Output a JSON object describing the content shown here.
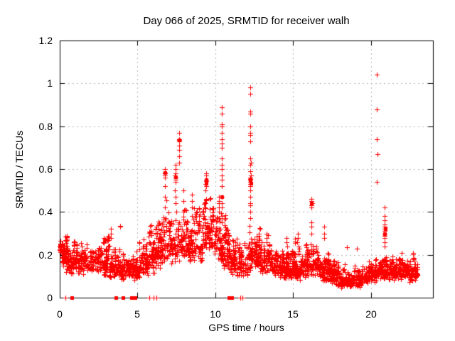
{
  "chart_data": {
    "type": "scatter",
    "title": "Day 066 of 2025, SRMTID for receiver walh",
    "xlabel": "GPS time / hours",
    "ylabel": "SRMTID / TECUs",
    "xlim": [
      0,
      24
    ],
    "ylim": [
      0,
      1.2
    ],
    "xtick_labels": [
      "0",
      "5",
      "10",
      "15",
      "20"
    ],
    "xtick_values": [
      0,
      5,
      10,
      15,
      20
    ],
    "ytick_labels": [
      "0",
      "0.2",
      "0.4",
      "0.6",
      "0.8",
      "1",
      "1.2"
    ],
    "ytick_values": [
      0,
      0.2,
      0.4,
      0.6,
      0.8,
      1.0,
      1.2
    ],
    "grid": true,
    "legend": "none",
    "marker": "plus",
    "marker_color": "#ff0000",
    "grid_color": "#b4b4b4",
    "border_color": "#000000",
    "data_start_hour": 0.0,
    "data_end_hour": 23.05,
    "seed": 20250306,
    "band_envelope": [
      [
        0.0,
        0.21,
        0.26
      ],
      [
        0.3,
        0.12,
        0.27
      ],
      [
        0.6,
        0.1,
        0.24
      ],
      [
        1.0,
        0.11,
        0.26
      ],
      [
        1.5,
        0.1,
        0.23
      ],
      [
        2.0,
        0.1,
        0.2
      ],
      [
        2.5,
        0.1,
        0.24
      ],
      [
        3.0,
        0.09,
        0.27
      ],
      [
        3.5,
        0.08,
        0.23
      ],
      [
        4.0,
        0.08,
        0.22
      ],
      [
        4.5,
        0.07,
        0.19
      ],
      [
        5.0,
        0.08,
        0.22
      ],
      [
        5.5,
        0.1,
        0.27
      ],
      [
        6.0,
        0.1,
        0.3
      ],
      [
        6.5,
        0.12,
        0.33
      ],
      [
        7.0,
        0.14,
        0.38
      ],
      [
        7.5,
        0.15,
        0.43
      ],
      [
        8.0,
        0.15,
        0.4
      ],
      [
        8.5,
        0.14,
        0.38
      ],
      [
        9.0,
        0.16,
        0.4
      ],
      [
        9.5,
        0.2,
        0.44
      ],
      [
        10.0,
        0.18,
        0.43
      ],
      [
        10.5,
        0.12,
        0.37
      ],
      [
        11.0,
        0.1,
        0.3
      ],
      [
        11.5,
        0.09,
        0.25
      ],
      [
        12.0,
        0.1,
        0.27
      ],
      [
        12.5,
        0.11,
        0.28
      ],
      [
        13.0,
        0.11,
        0.26
      ],
      [
        13.5,
        0.1,
        0.23
      ],
      [
        14.0,
        0.08,
        0.2
      ],
      [
        14.5,
        0.08,
        0.2
      ],
      [
        15.0,
        0.08,
        0.22
      ],
      [
        15.5,
        0.08,
        0.21
      ],
      [
        16.0,
        0.08,
        0.24
      ],
      [
        16.5,
        0.09,
        0.22
      ],
      [
        17.0,
        0.07,
        0.2
      ],
      [
        17.5,
        0.05,
        0.16
      ],
      [
        18.0,
        0.04,
        0.14
      ],
      [
        18.5,
        0.04,
        0.12
      ],
      [
        19.0,
        0.04,
        0.12
      ],
      [
        19.5,
        0.05,
        0.14
      ],
      [
        20.0,
        0.06,
        0.16
      ],
      [
        20.5,
        0.07,
        0.18
      ],
      [
        21.0,
        0.08,
        0.19
      ],
      [
        21.5,
        0.07,
        0.16
      ],
      [
        22.0,
        0.08,
        0.19
      ],
      [
        22.5,
        0.07,
        0.18
      ],
      [
        23.05,
        0.08,
        0.16
      ]
    ],
    "spikes": [
      {
        "t": 3.3,
        "values": [
          0.28,
          0.3,
          0.32
        ]
      },
      {
        "t": 3.9,
        "values": [
          0.33,
          0.335
        ]
      },
      {
        "t": 6.2,
        "values": [
          0.28,
          0.3,
          0.32,
          0.33
        ]
      },
      {
        "t": 6.78,
        "values": [
          0.42,
          0.47,
          0.52,
          0.56,
          0.57,
          0.58,
          0.585,
          0.6
        ]
      },
      {
        "t": 7.44,
        "values": [
          0.44,
          0.47,
          0.5,
          0.54,
          0.55,
          0.56,
          0.57,
          0.58,
          0.6,
          0.62
        ]
      },
      {
        "t": 7.67,
        "values": [
          0.63,
          0.66,
          0.69,
          0.71,
          0.73,
          0.735,
          0.74,
          0.77
        ]
      },
      {
        "t": 7.95,
        "values": [
          0.4,
          0.45,
          0.5
        ]
      },
      {
        "t": 8.5,
        "values": [
          0.38,
          0.42,
          0.45,
          0.48
        ]
      },
      {
        "t": 9.4,
        "values": [
          0.44,
          0.5,
          0.52,
          0.53,
          0.545,
          0.55,
          0.57,
          0.58
        ]
      },
      {
        "t": 10.25,
        "values": [
          0.4,
          0.42,
          0.44,
          0.45,
          0.47
        ]
      },
      {
        "t": 10.42,
        "values": [
          0.38,
          0.42,
          0.44,
          0.47,
          0.52,
          0.55,
          0.57,
          0.6,
          0.62,
          0.65,
          0.7,
          0.72,
          0.74,
          0.77,
          0.8,
          0.81,
          0.86,
          0.89
        ]
      },
      {
        "t": 12.26,
        "values": [
          0.37,
          0.4,
          0.43,
          0.44,
          0.47,
          0.5,
          0.52,
          0.53,
          0.54,
          0.55,
          0.555,
          0.56,
          0.57,
          0.59,
          0.62,
          0.63,
          0.65,
          0.73,
          0.76,
          0.77,
          0.8,
          0.86,
          0.87,
          0.95,
          0.98
        ]
      },
      {
        "t": 12.8,
        "values": [
          0.27,
          0.29,
          0.3
        ]
      },
      {
        "t": 13.3,
        "values": [
          0.26,
          0.28,
          0.3
        ]
      },
      {
        "t": 14.6,
        "values": [
          0.24,
          0.26,
          0.28
        ]
      },
      {
        "t": 15.3,
        "values": [
          0.26,
          0.28,
          0.3
        ]
      },
      {
        "t": 16.2,
        "values": [
          0.3,
          0.33,
          0.35,
          0.42,
          0.43,
          0.44,
          0.45,
          0.46
        ]
      },
      {
        "t": 17.0,
        "values": [
          0.28,
          0.3,
          0.33
        ]
      },
      {
        "t": 18.45,
        "values": [
          0.235
        ]
      },
      {
        "t": 19.1,
        "values": [
          0.23
        ]
      },
      {
        "t": 20.4,
        "values": [
          0.54,
          0.67,
          0.74,
          0.88,
          1.04
        ]
      },
      {
        "t": 20.9,
        "values": [
          0.24,
          0.26,
          0.28,
          0.29,
          0.3,
          0.31,
          0.32,
          0.33,
          0.34,
          0.36,
          0.38,
          0.42
        ]
      },
      {
        "t": 22.0,
        "values": [
          0.21
        ]
      }
    ],
    "square_markers": [
      [
        0.02,
        0.24
      ],
      [
        2.9,
        0.27
      ],
      [
        6.78,
        0.585
      ],
      [
        7.44,
        0.565
      ],
      [
        7.67,
        0.735
      ],
      [
        9.4,
        0.55
      ],
      [
        9.42,
        0.535
      ],
      [
        10.42,
        0.47
      ],
      [
        12.26,
        0.55
      ],
      [
        12.28,
        0.535
      ],
      [
        16.2,
        0.44
      ],
      [
        20.9,
        0.3
      ],
      [
        20.92,
        0.32
      ]
    ],
    "baseline_markers_plus": [
      0.35,
      5.78,
      6.05,
      6.2,
      11.6,
      11.75
    ],
    "baseline_markers_square": [
      0.78,
      3.62,
      4.07,
      4.63,
      4.85,
      10.9,
      10.97,
      11.04
    ]
  }
}
